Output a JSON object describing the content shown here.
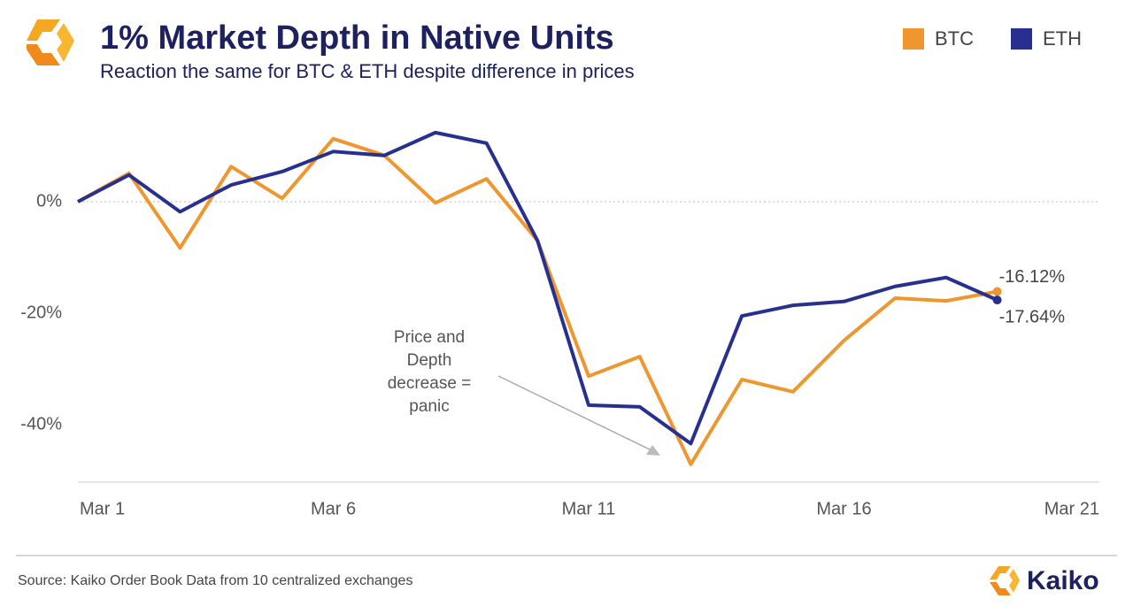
{
  "chart_data": {
    "type": "line",
    "title": "1% Market Depth in Native Units",
    "subtitle": "Reaction the same for BTC & ETH despite difference in prices",
    "x": [
      1,
      2,
      3,
      4,
      5,
      6,
      7,
      8,
      9,
      10,
      11,
      12,
      13,
      14,
      15,
      16,
      17,
      18,
      19
    ],
    "xlim": [
      1,
      21
    ],
    "xticks": [
      {
        "value": 1,
        "label": "Mar 1"
      },
      {
        "value": 6,
        "label": "Mar 6"
      },
      {
        "value": 11,
        "label": "Mar 11"
      },
      {
        "value": 16,
        "label": "Mar 16"
      },
      {
        "value": 21,
        "label": "Mar 21"
      }
    ],
    "ylim": [
      -50,
      15
    ],
    "yticks": [
      {
        "value": 0,
        "label": "0%"
      },
      {
        "value": -20,
        "label": "-20%"
      },
      {
        "value": -40,
        "label": "-40%"
      }
    ],
    "zero_line": true,
    "series": [
      {
        "name": "BTC",
        "color": "#f0962f",
        "values": [
          0,
          5.1,
          -8.3,
          6.3,
          0.6,
          11.3,
          8.3,
          -0.2,
          4.1,
          -7,
          -31.3,
          -27.8,
          -47.1,
          -31.9,
          -34.1,
          -24.9,
          -17.3,
          -17.8,
          -16.12
        ],
        "value_labels": [
          null,
          null,
          null,
          null,
          null,
          null,
          null,
          null,
          null,
          null,
          null,
          null,
          null,
          null,
          null,
          null,
          null,
          null,
          "-16.12%"
        ]
      },
      {
        "name": "ETH",
        "color": "#27308e",
        "values": [
          0,
          4.8,
          -1.8,
          3,
          5.4,
          9,
          8.3,
          12.4,
          10.5,
          -7,
          -36.5,
          -36.8,
          -43.4,
          -20.5,
          -18.6,
          -17.9,
          -15.2,
          -13.6,
          -17.64
        ],
        "value_labels": [
          null,
          null,
          null,
          null,
          null,
          null,
          null,
          null,
          null,
          null,
          null,
          null,
          null,
          null,
          null,
          null,
          null,
          null,
          "-17.64%"
        ]
      }
    ],
    "annotation": [
      "Price and",
      "Depth",
      "decrease =",
      "panic"
    ],
    "source": "Source: Kaiko Order Book Data from 10 centralized exchanges",
    "brand": "Kaiko"
  }
}
